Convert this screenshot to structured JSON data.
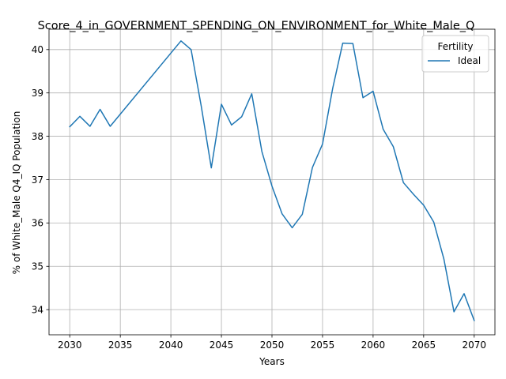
{
  "chart_data": {
    "type": "line",
    "title": "Score_4_in_GOVERNMENT_SPENDING_ON_ENVIRONMENT_for_White_Male_Q",
    "xlabel": "Years",
    "ylabel": "% of White_Male Q4_IQ Population",
    "xlim": [
      2027.95,
      2072.05
    ],
    "ylim": [
      33.42,
      40.47
    ],
    "xticks": [
      2030,
      2035,
      2040,
      2045,
      2050,
      2055,
      2060,
      2065,
      2070
    ],
    "yticks": [
      34,
      35,
      36,
      37,
      38,
      39,
      40
    ],
    "grid": true,
    "legend": {
      "title": "Fertility",
      "position": "top-right"
    },
    "series": [
      {
        "name": "Ideal",
        "color": "#1f77b4",
        "x": [
          2030,
          2031,
          2032,
          2033,
          2034,
          2041,
          2042,
          2043,
          2044,
          2045,
          2046,
          2047,
          2048,
          2049,
          2050,
          2051,
          2052,
          2053,
          2054,
          2055,
          2056,
          2057,
          2058,
          2059,
          2060,
          2061,
          2062,
          2063,
          2064,
          2065,
          2066,
          2067,
          2068,
          2069,
          2070
        ],
        "values": [
          38.22,
          38.46,
          38.23,
          38.62,
          38.23,
          40.2,
          40.0,
          38.7,
          37.27,
          38.74,
          38.26,
          38.45,
          38.98,
          37.65,
          36.85,
          36.21,
          35.89,
          36.2,
          37.28,
          37.82,
          39.1,
          40.15,
          40.14,
          38.89,
          39.04,
          38.16,
          37.76,
          36.93,
          36.66,
          36.41,
          36.02,
          35.17,
          33.95,
          34.37,
          33.75
        ]
      }
    ]
  }
}
